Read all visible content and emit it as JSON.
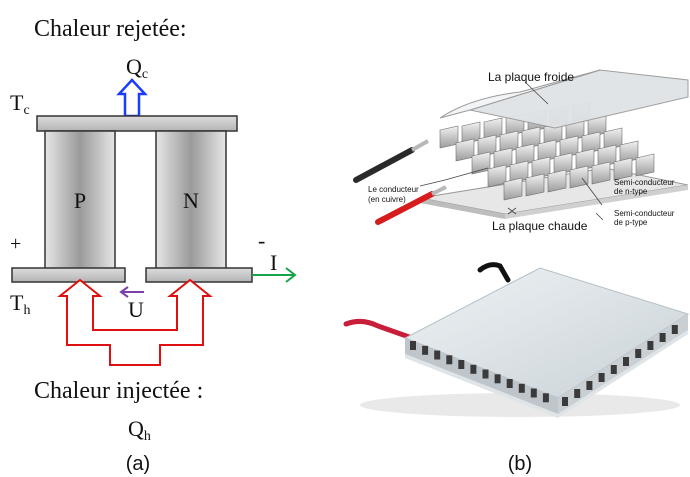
{
  "panel_a": {
    "heat_rejected_label": "Chaleur rejetée:",
    "qc_main": "Q",
    "qc_sub": "c",
    "tc_main": "T",
    "tc_sub": "c",
    "p_label": "P",
    "n_label": "N",
    "plus_label": "+",
    "minus_label": "-",
    "current_label": "I",
    "th_main": "T",
    "th_sub": "h",
    "voltage_label": "U",
    "heat_injected_label": "Chaleur injectée :",
    "qh_main": "Q",
    "qh_sub": "h",
    "caption": "(a)"
  },
  "panel_b": {
    "cold_plate_label": "La plaque froide",
    "conductor_label_line1": "Le conducteur",
    "conductor_label_line2": "(en cuivre)",
    "hot_plate_label": "La plaque chaude",
    "n_type_line1": "Semi-conducteur",
    "n_type_line2": "de n-type",
    "p_type_line1": "Semi-conducteur",
    "p_type_line2": "de p-type",
    "caption": "(b)"
  },
  "colors": {
    "heat_out_arrow": "#1a3cff",
    "heat_in_arrow": "#e01010",
    "current_arrow": "#16a34a",
    "voltage_arrow": "#7b3fa8",
    "plate_gray": "#c8c8c8",
    "leg_gray": "#a8a8a8"
  }
}
